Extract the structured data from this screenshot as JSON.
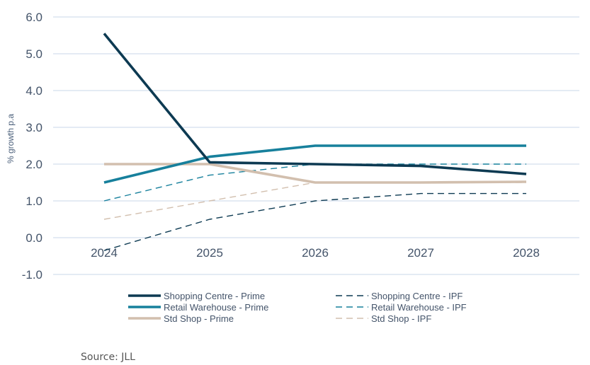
{
  "chart_data": {
    "type": "line",
    "x": [
      "2024",
      "2025",
      "2026",
      "2027",
      "2028"
    ],
    "ylabel": "% growth p.a",
    "ylim": [
      -1.0,
      6.0
    ],
    "yticks": [
      "6.0",
      "5.0",
      "4.0",
      "3.0",
      "2.0",
      "1.0",
      "0.0",
      "-1.0"
    ],
    "grid": true,
    "legend_position": "bottom",
    "series": [
      {
        "name": "Shopping Centre - Prime",
        "values": [
          5.55,
          2.05,
          2.0,
          1.95,
          1.73
        ],
        "color": "#0d3a52",
        "style": "solid"
      },
      {
        "name": "Shopping Centre - IPF",
        "values": [
          -0.35,
          0.5,
          1.0,
          1.2,
          1.2
        ],
        "color": "#0d3a52",
        "style": "dashed"
      },
      {
        "name": "Retail Warehouse - Prime",
        "values": [
          1.5,
          2.2,
          2.5,
          2.5,
          2.5
        ],
        "color": "#17809c",
        "style": "solid"
      },
      {
        "name": "Retail Warehouse - IPF",
        "values": [
          1.0,
          1.7,
          2.0,
          2.0,
          2.0
        ],
        "color": "#17809c",
        "style": "dashed"
      },
      {
        "name": "Std Shop - Prime",
        "values": [
          2.0,
          2.0,
          1.5,
          1.5,
          1.52
        ],
        "color": "#d2bfae",
        "style": "solid"
      },
      {
        "name": "Std Shop - IPF",
        "values": [
          0.5,
          1.0,
          1.5,
          1.5,
          1.5
        ],
        "color": "#d2bfae",
        "style": "dashed"
      }
    ]
  },
  "source": "Source: JLL"
}
